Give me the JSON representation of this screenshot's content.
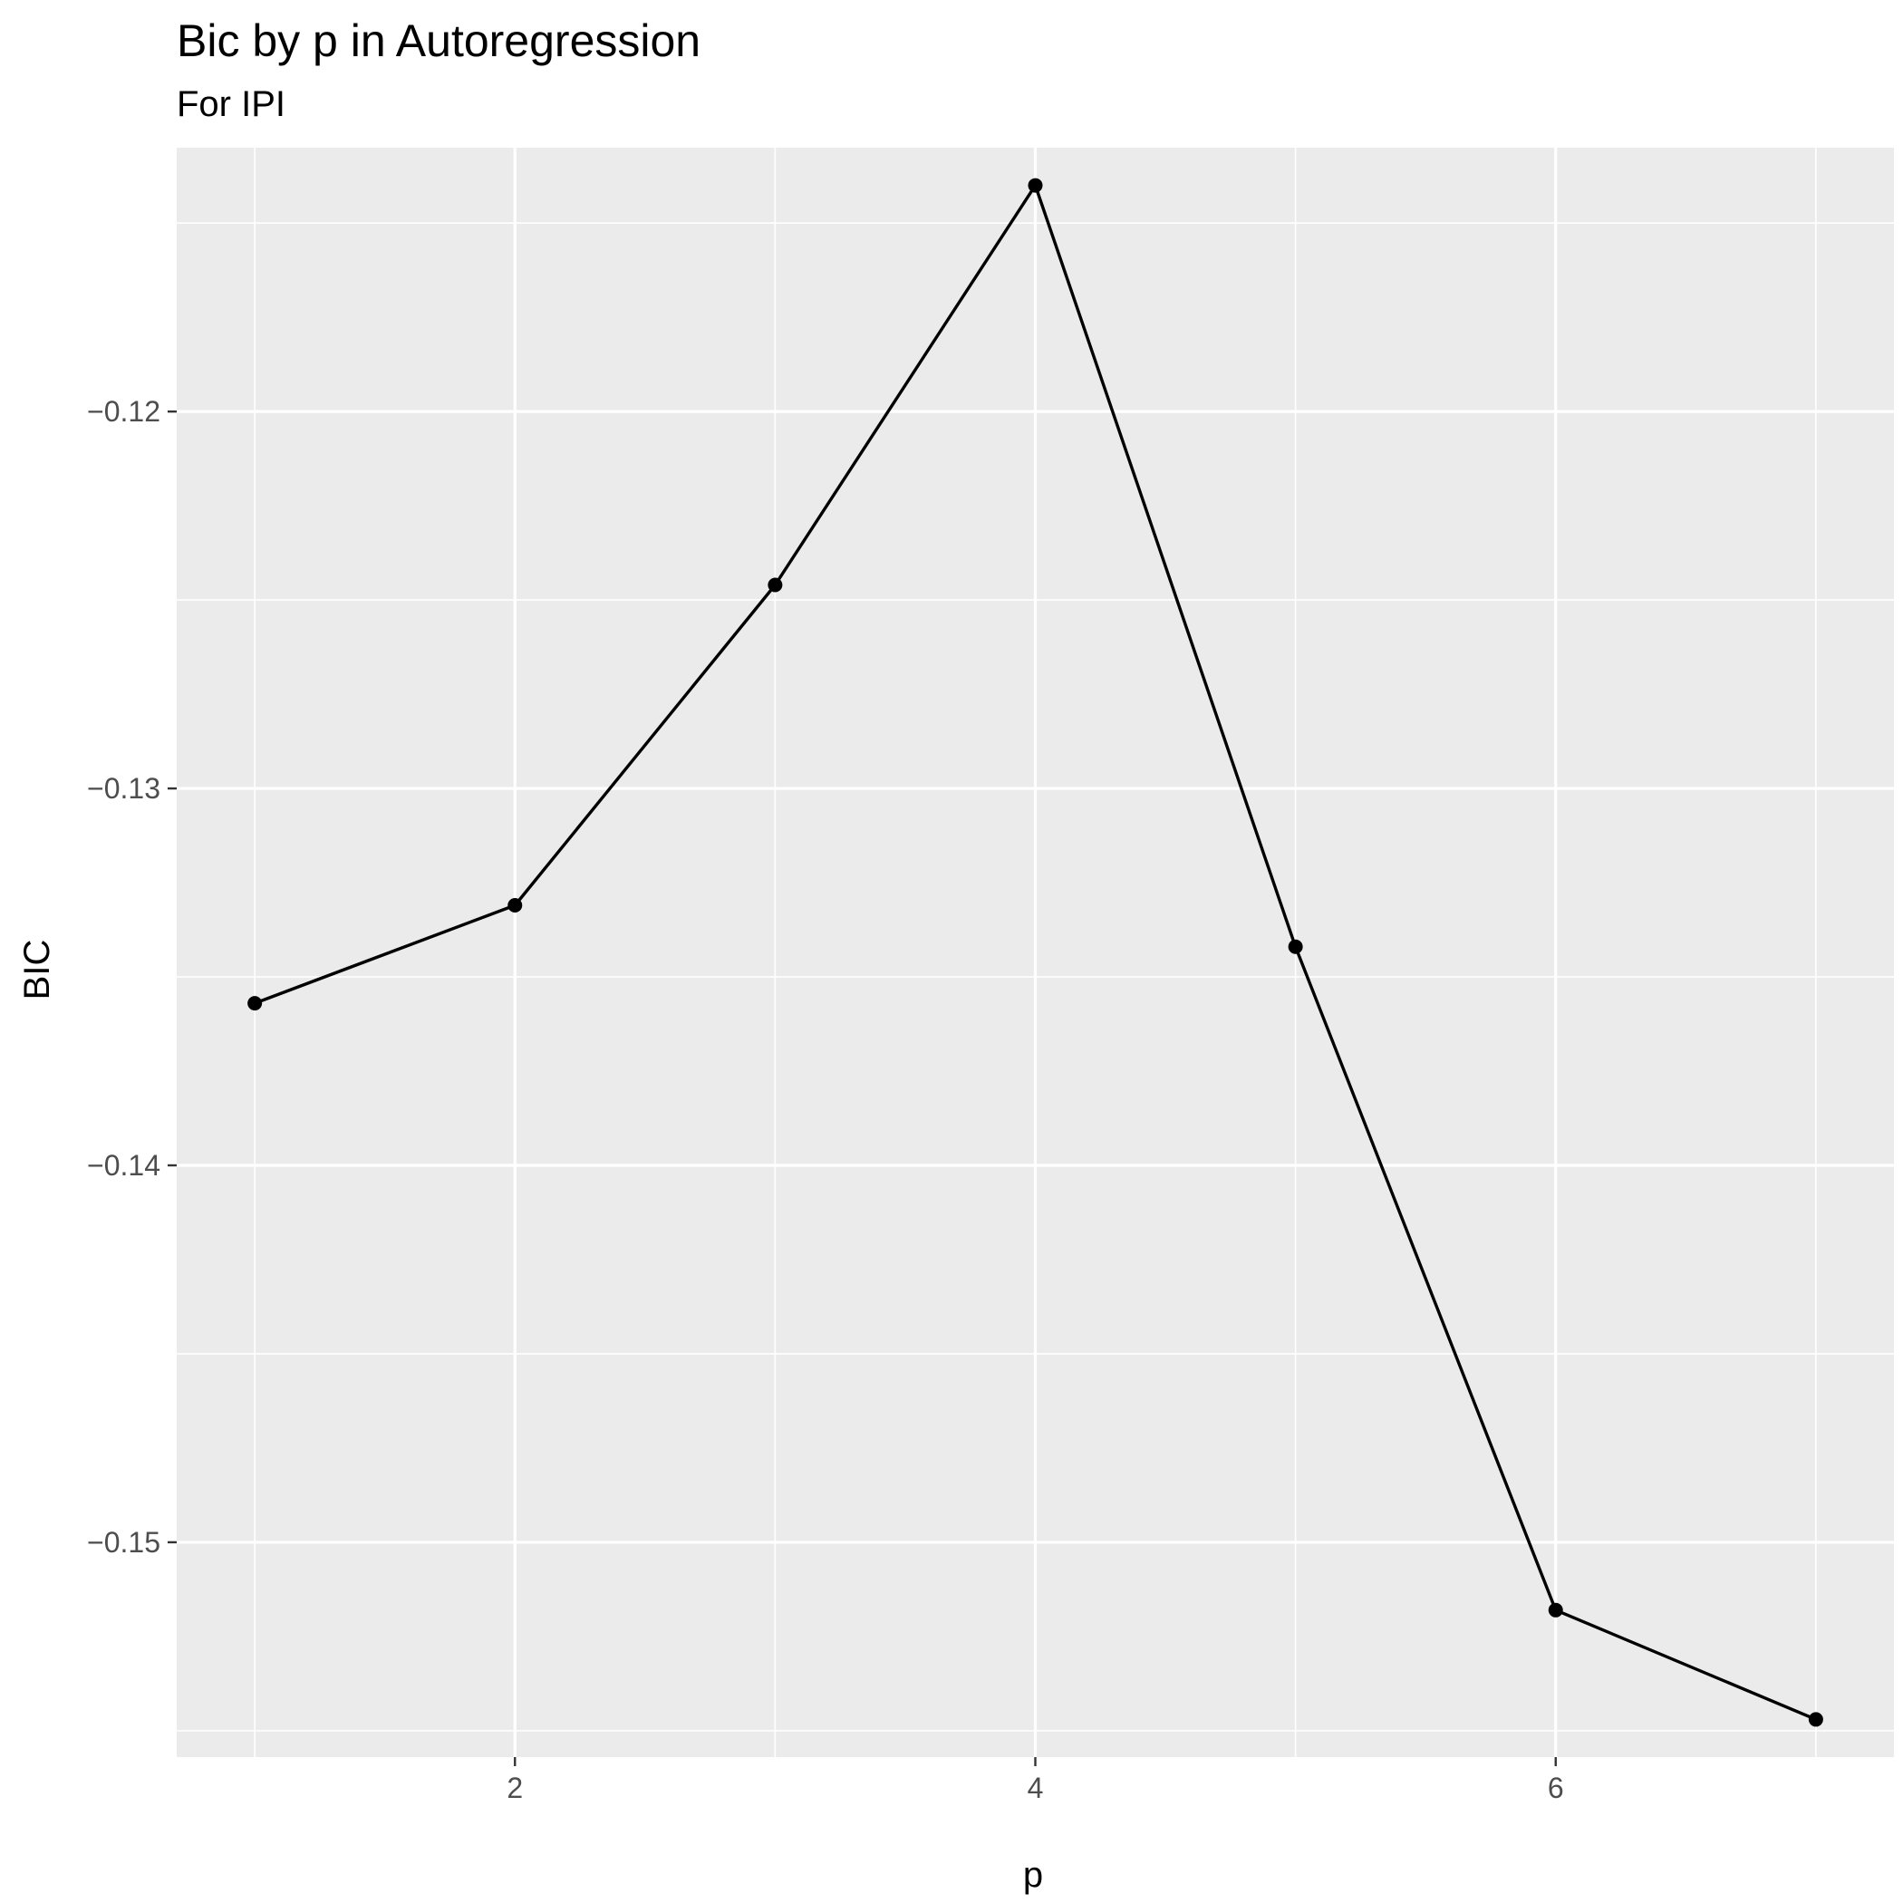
{
  "chart_data": {
    "type": "line",
    "title": "Bic by p in Autoregression",
    "subtitle": "For IPI",
    "xlabel": "p",
    "ylabel": "BIC",
    "x": [
      1,
      2,
      3,
      4,
      5,
      6,
      7
    ],
    "series": [
      {
        "values": [
          -0.1357,
          -0.1331,
          -0.1246,
          -0.114,
          -0.1342,
          -0.1518,
          -0.1547
        ]
      }
    ],
    "x_ticks": [
      {
        "value": 2,
        "label": "2"
      },
      {
        "value": 4,
        "label": "4"
      },
      {
        "value": 6,
        "label": "6"
      }
    ],
    "y_ticks": [
      {
        "value": -0.12,
        "label": "−0.12"
      },
      {
        "value": -0.13,
        "label": "−0.13"
      },
      {
        "value": -0.14,
        "label": "−0.14"
      },
      {
        "value": -0.15,
        "label": "−0.15"
      }
    ],
    "xlim": [
      0.7,
      7.3
    ],
    "ylim": [
      -0.1557,
      -0.113
    ],
    "grid": true,
    "legend": "none",
    "colors": {
      "panel_background": "#ebebeb",
      "grid_line": "#ffffff",
      "line": "#000000",
      "point": "#000000",
      "tick_text": "#4d4d4d",
      "tick_mark": "#333333"
    }
  }
}
